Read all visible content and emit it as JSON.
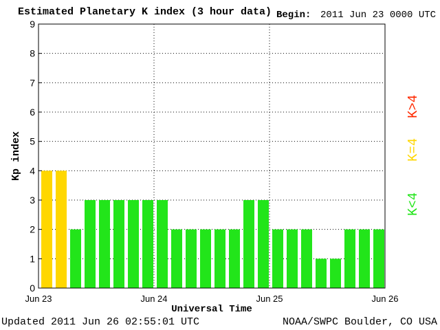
{
  "header": {
    "title": "Estimated Planetary K index (3 hour data)",
    "begin_label": "Begin:",
    "begin_value": "2011 Jun 23 0000 UTC"
  },
  "footer": {
    "updated": "Updated 2011 Jun 26 02:55:01 UTC",
    "credit": "NOAA/SWPC Boulder, CO USA"
  },
  "legend": [
    {
      "label": "K>4",
      "color": "#ff2a00"
    },
    {
      "label": "K=4",
      "color": "#ffd700"
    },
    {
      "label": "K<4",
      "color": "#22e51a"
    }
  ],
  "chart_data": {
    "type": "bar",
    "title": "Estimated Planetary K index (3 hour data)",
    "xlabel": "Universal Time",
    "ylabel": "Kp index",
    "ylim": [
      0,
      9
    ],
    "yticks": [
      0,
      1,
      2,
      3,
      4,
      5,
      6,
      7,
      8,
      9
    ],
    "xticks": [
      "Jun 23",
      "Jun 24",
      "Jun 25",
      "Jun 26"
    ],
    "grid": "dotted",
    "values": [
      4,
      4,
      2,
      3,
      3,
      3,
      3,
      3,
      3,
      2,
      2,
      2,
      2,
      2,
      3,
      3,
      2,
      2,
      2,
      1,
      1,
      2,
      2,
      2
    ],
    "colors": {
      "below4": "#22e51a",
      "equal4": "#ffd700",
      "above4": "#ff2a00"
    }
  }
}
